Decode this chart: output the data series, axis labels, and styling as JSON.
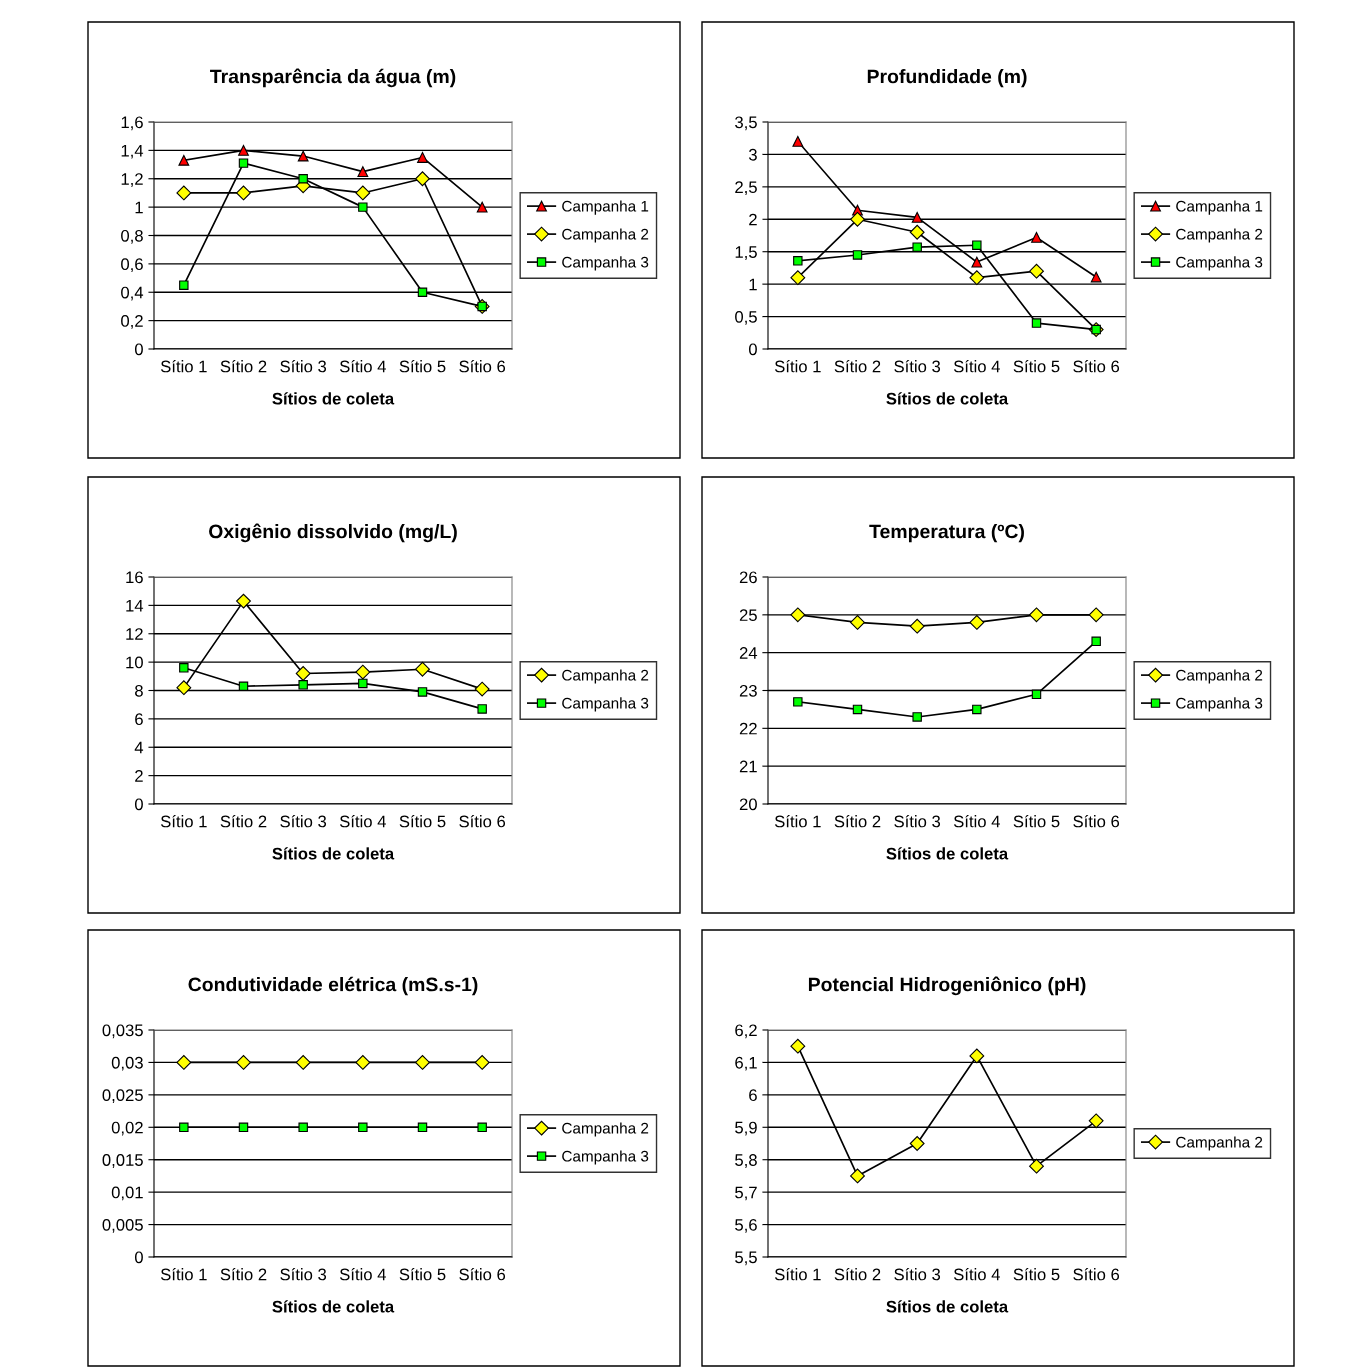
{
  "chart_data": [
    {
      "type": "line",
      "title": "Transparência da água (m)",
      "xlabel": "Sítios de coleta",
      "categories": [
        "Sítio 1",
        "Sítio 2",
        "Sítio 3",
        "Sítio 4",
        "Sítio 5",
        "Sítio 6"
      ],
      "grid": "y",
      "legend": "right",
      "ylim": [
        0,
        1.6
      ],
      "yticks": [
        0,
        {
          "value": 0.2,
          "label": "0,2"
        },
        {
          "value": 0.4,
          "label": "0,4"
        },
        {
          "value": 0.6,
          "label": "0,6"
        },
        {
          "value": 0.8,
          "label": "0,8"
        },
        1,
        {
          "value": 1.2,
          "label": "1,2"
        },
        {
          "value": 1.4,
          "label": "1,4"
        },
        {
          "value": 1.6,
          "label": "1,6"
        }
      ],
      "series": [
        {
          "name": "Campanha 1",
          "color": "#ff0000",
          "marker": "triangle",
          "values": [
            1.33,
            1.4,
            1.36,
            1.25,
            1.35,
            1.0
          ]
        },
        {
          "name": "Campanha 2",
          "color": "#ffff00",
          "marker": "diamond",
          "values": [
            1.1,
            1.1,
            1.15,
            1.1,
            1.2,
            0.3
          ]
        },
        {
          "name": "Campanha 3",
          "color": "#00ff00",
          "marker": "square",
          "values": [
            0.45,
            1.31,
            1.2,
            1.0,
            0.4,
            0.3
          ]
        }
      ]
    },
    {
      "type": "line",
      "title": "Profundidade (m)",
      "xlabel": "Sítios de coleta",
      "categories": [
        "Sítio 1",
        "Sítio 2",
        "Sítio 3",
        "Sítio 4",
        "Sítio 5",
        "Sítio 6"
      ],
      "grid": "y",
      "legend": "right",
      "ylim": [
        0,
        3.5
      ],
      "yticks": [
        0,
        {
          "value": 0.5,
          "label": "0,5"
        },
        1,
        {
          "value": 1.5,
          "label": "1,5"
        },
        2,
        {
          "value": 2.5,
          "label": "2,5"
        },
        3,
        {
          "value": 3.5,
          "label": "3,5"
        }
      ],
      "series": [
        {
          "name": "Campanha 1",
          "color": "#ff0000",
          "marker": "triangle",
          "values": [
            3.2,
            2.14,
            2.03,
            1.34,
            1.72,
            1.11
          ]
        },
        {
          "name": "Campanha 2",
          "color": "#ffff00",
          "marker": "diamond",
          "values": [
            1.1,
            2.0,
            1.8,
            1.1,
            1.2,
            0.3
          ]
        },
        {
          "name": "Campanha 3",
          "color": "#00ff00",
          "marker": "square",
          "values": [
            1.36,
            1.45,
            1.57,
            1.6,
            0.4,
            0.3
          ]
        }
      ]
    },
    {
      "type": "line",
      "title": "Oxigênio dissolvido (mg/L)",
      "xlabel": "Sítios de coleta",
      "categories": [
        "Sítio 1",
        "Sítio 2",
        "Sítio 3",
        "Sítio 4",
        "Sítio 5",
        "Sítio 6"
      ],
      "grid": "y",
      "legend": "right",
      "ylim": [
        0,
        16
      ],
      "yticks": [
        0,
        2,
        4,
        6,
        8,
        10,
        12,
        14,
        16
      ],
      "series": [
        {
          "name": "Campanha 2",
          "color": "#ffff00",
          "marker": "diamond",
          "values": [
            8.2,
            14.3,
            9.2,
            9.3,
            9.5,
            8.1
          ]
        },
        {
          "name": "Campanha 3",
          "color": "#00ff00",
          "marker": "square",
          "values": [
            9.6,
            8.3,
            8.4,
            8.5,
            7.9,
            6.7
          ]
        }
      ]
    },
    {
      "type": "line",
      "title": "Temperatura (ºC)",
      "xlabel": "Sítios de coleta",
      "categories": [
        "Sítio 1",
        "Sítio 2",
        "Sítio 3",
        "Sítio 4",
        "Sítio 5",
        "Sítio 6"
      ],
      "grid": "y",
      "legend": "right",
      "ylim": [
        20,
        26
      ],
      "yticks": [
        20,
        21,
        22,
        23,
        24,
        25,
        26
      ],
      "series": [
        {
          "name": "Campanha 2",
          "color": "#ffff00",
          "marker": "diamond",
          "values": [
            25.0,
            24.8,
            24.7,
            24.8,
            25.0,
            25.0
          ]
        },
        {
          "name": "Campanha 3",
          "color": "#00ff00",
          "marker": "square",
          "values": [
            22.7,
            22.5,
            22.3,
            22.5,
            22.9,
            24.3
          ]
        }
      ]
    },
    {
      "type": "line",
      "title": "Condutividade elétrica (mS.s-1)",
      "xlabel": "Sítios de coleta",
      "categories": [
        "Sítio 1",
        "Sítio 2",
        "Sítio 3",
        "Sítio 4",
        "Sítio 5",
        "Sítio 6"
      ],
      "grid": "y",
      "legend": "right",
      "ylim": [
        0,
        0.035
      ],
      "yticks": [
        0,
        {
          "value": 0.005,
          "label": "0,005"
        },
        {
          "value": 0.01,
          "label": "0,01"
        },
        {
          "value": 0.015,
          "label": "0,015"
        },
        {
          "value": 0.02,
          "label": "0,02"
        },
        {
          "value": 0.025,
          "label": "0,025"
        },
        {
          "value": 0.03,
          "label": "0,03"
        },
        {
          "value": 0.035,
          "label": "0,035"
        }
      ],
      "series": [
        {
          "name": "Campanha 2",
          "color": "#ffff00",
          "marker": "diamond",
          "values": [
            0.03,
            0.03,
            0.03,
            0.03,
            0.03,
            0.03
          ]
        },
        {
          "name": "Campanha 3",
          "color": "#00ff00",
          "marker": "square",
          "values": [
            0.02,
            0.02,
            0.02,
            0.02,
            0.02,
            0.02
          ]
        }
      ]
    },
    {
      "type": "line",
      "title": "Potencial Hidrogeniônico (pH)",
      "xlabel": "Sítios de coleta",
      "categories": [
        "Sítio 1",
        "Sítio 2",
        "Sítio 3",
        "Sítio 4",
        "Sítio 5",
        "Sítio 6"
      ],
      "grid": "y",
      "legend": "right",
      "ylim": [
        5.5,
        6.2
      ],
      "yticks": [
        {
          "value": 5.5,
          "label": "5,5"
        },
        {
          "value": 5.6,
          "label": "5,6"
        },
        {
          "value": 5.7,
          "label": "5,7"
        },
        {
          "value": 5.8,
          "label": "5,8"
        },
        {
          "value": 5.9,
          "label": "5,9"
        },
        6,
        {
          "value": 6.1,
          "label": "6,1"
        },
        {
          "value": 6.2,
          "label": "6,2"
        }
      ],
      "series": [
        {
          "name": "Campanha 2",
          "color": "#ffff00",
          "marker": "diamond",
          "values": [
            6.15,
            5.75,
            5.85,
            6.12,
            5.78,
            5.92
          ]
        }
      ]
    }
  ]
}
